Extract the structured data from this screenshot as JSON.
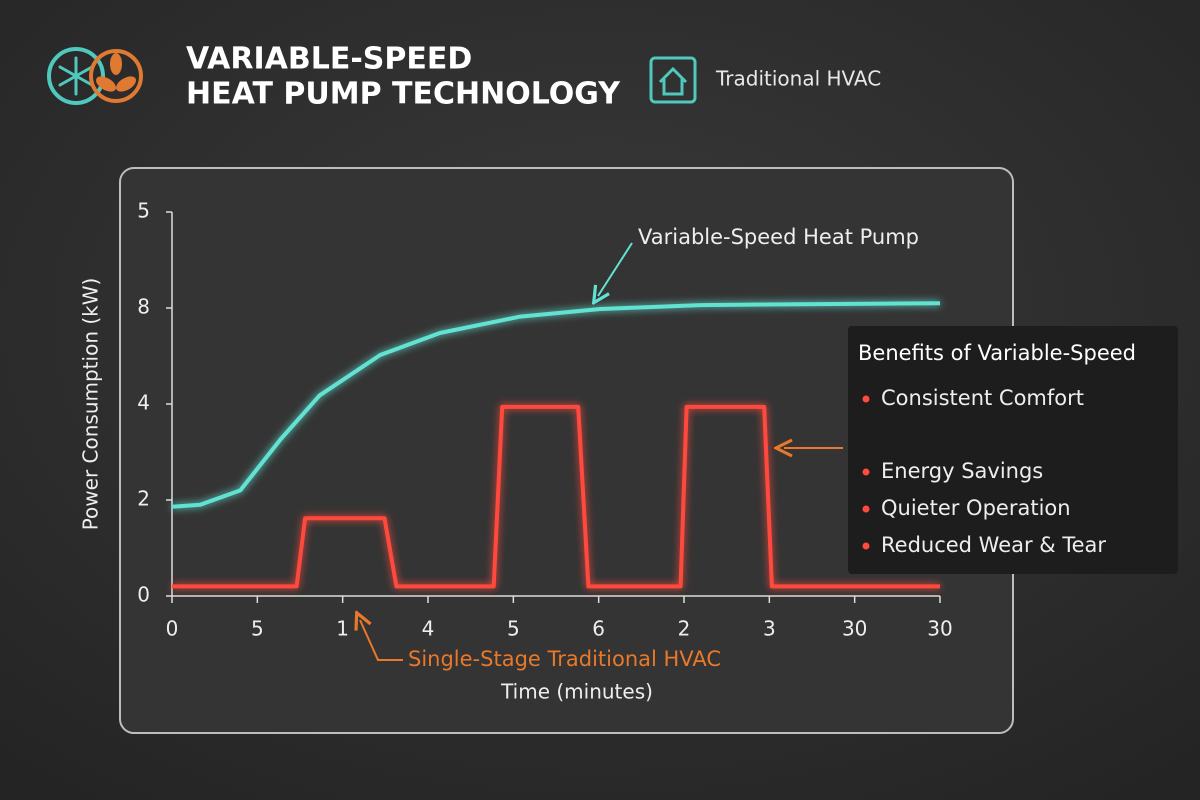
{
  "header": {
    "title_lines": [
      "VARIABLE-SPEED",
      "HEAT PUMP TECHNOLOGY"
    ],
    "legend": "Traditional HVAC"
  },
  "chart_data": {
    "type": "line",
    "x_label": "Time (minutes)",
    "y_label": "Power Consumption (kW)",
    "xlim": [
      0,
      9
    ],
    "ylim": [
      0,
      4
    ],
    "xticks": [
      0,
      {
        "value": 1,
        "label": "5"
      },
      {
        "value": 2,
        "label": "1"
      },
      {
        "value": 3,
        "label": "4"
      },
      {
        "value": 4,
        "label": "5"
      },
      {
        "value": 5,
        "label": "6"
      },
      {
        "value": 6,
        "label": "2"
      },
      {
        "value": 7,
        "label": "3"
      },
      {
        "value": 8,
        "label": "30"
      },
      {
        "value": 9,
        "label": "30"
      }
    ],
    "yticks": [
      0,
      {
        "value": 1,
        "label": "2"
      },
      {
        "value": 2,
        "label": "4"
      },
      {
        "value": 3,
        "label": "8"
      },
      {
        "value": 4,
        "label": "5"
      }
    ],
    "series": [
      {
        "name": "Variable-Speed Heat Pump",
        "color": "#62e2d2",
        "x": [
          0,
          0.33,
          0.8,
          1.27,
          1.73,
          2.44,
          3.14,
          4.08,
          5.02,
          6.19,
          7.36,
          9
        ],
        "values": [
          0.93,
          0.95,
          1.1,
          1.63,
          2.09,
          2.51,
          2.74,
          2.91,
          2.99,
          3.03,
          3.04,
          3.05
        ]
      },
      {
        "name": "Single-Stage Traditional HVAC",
        "color": "#ff4a3d",
        "x": [
          0,
          1.46,
          1.56,
          2.49,
          2.63,
          3.77,
          3.87,
          4.76,
          4.88,
          5.96,
          6.03,
          6.94,
          7.03,
          9
        ],
        "values": [
          0.1,
          0.1,
          0.81,
          0.81,
          0.1,
          0.1,
          1.97,
          1.97,
          0.1,
          0.1,
          1.97,
          1.97,
          0.1,
          0.1
        ]
      }
    ]
  },
  "benefits": {
    "title": "Benefits of Variable-Speed",
    "items": [
      "Consistent Comfort",
      "Energy Savings",
      "Quieter Operation",
      "Reduced Wear & Tear"
    ]
  }
}
